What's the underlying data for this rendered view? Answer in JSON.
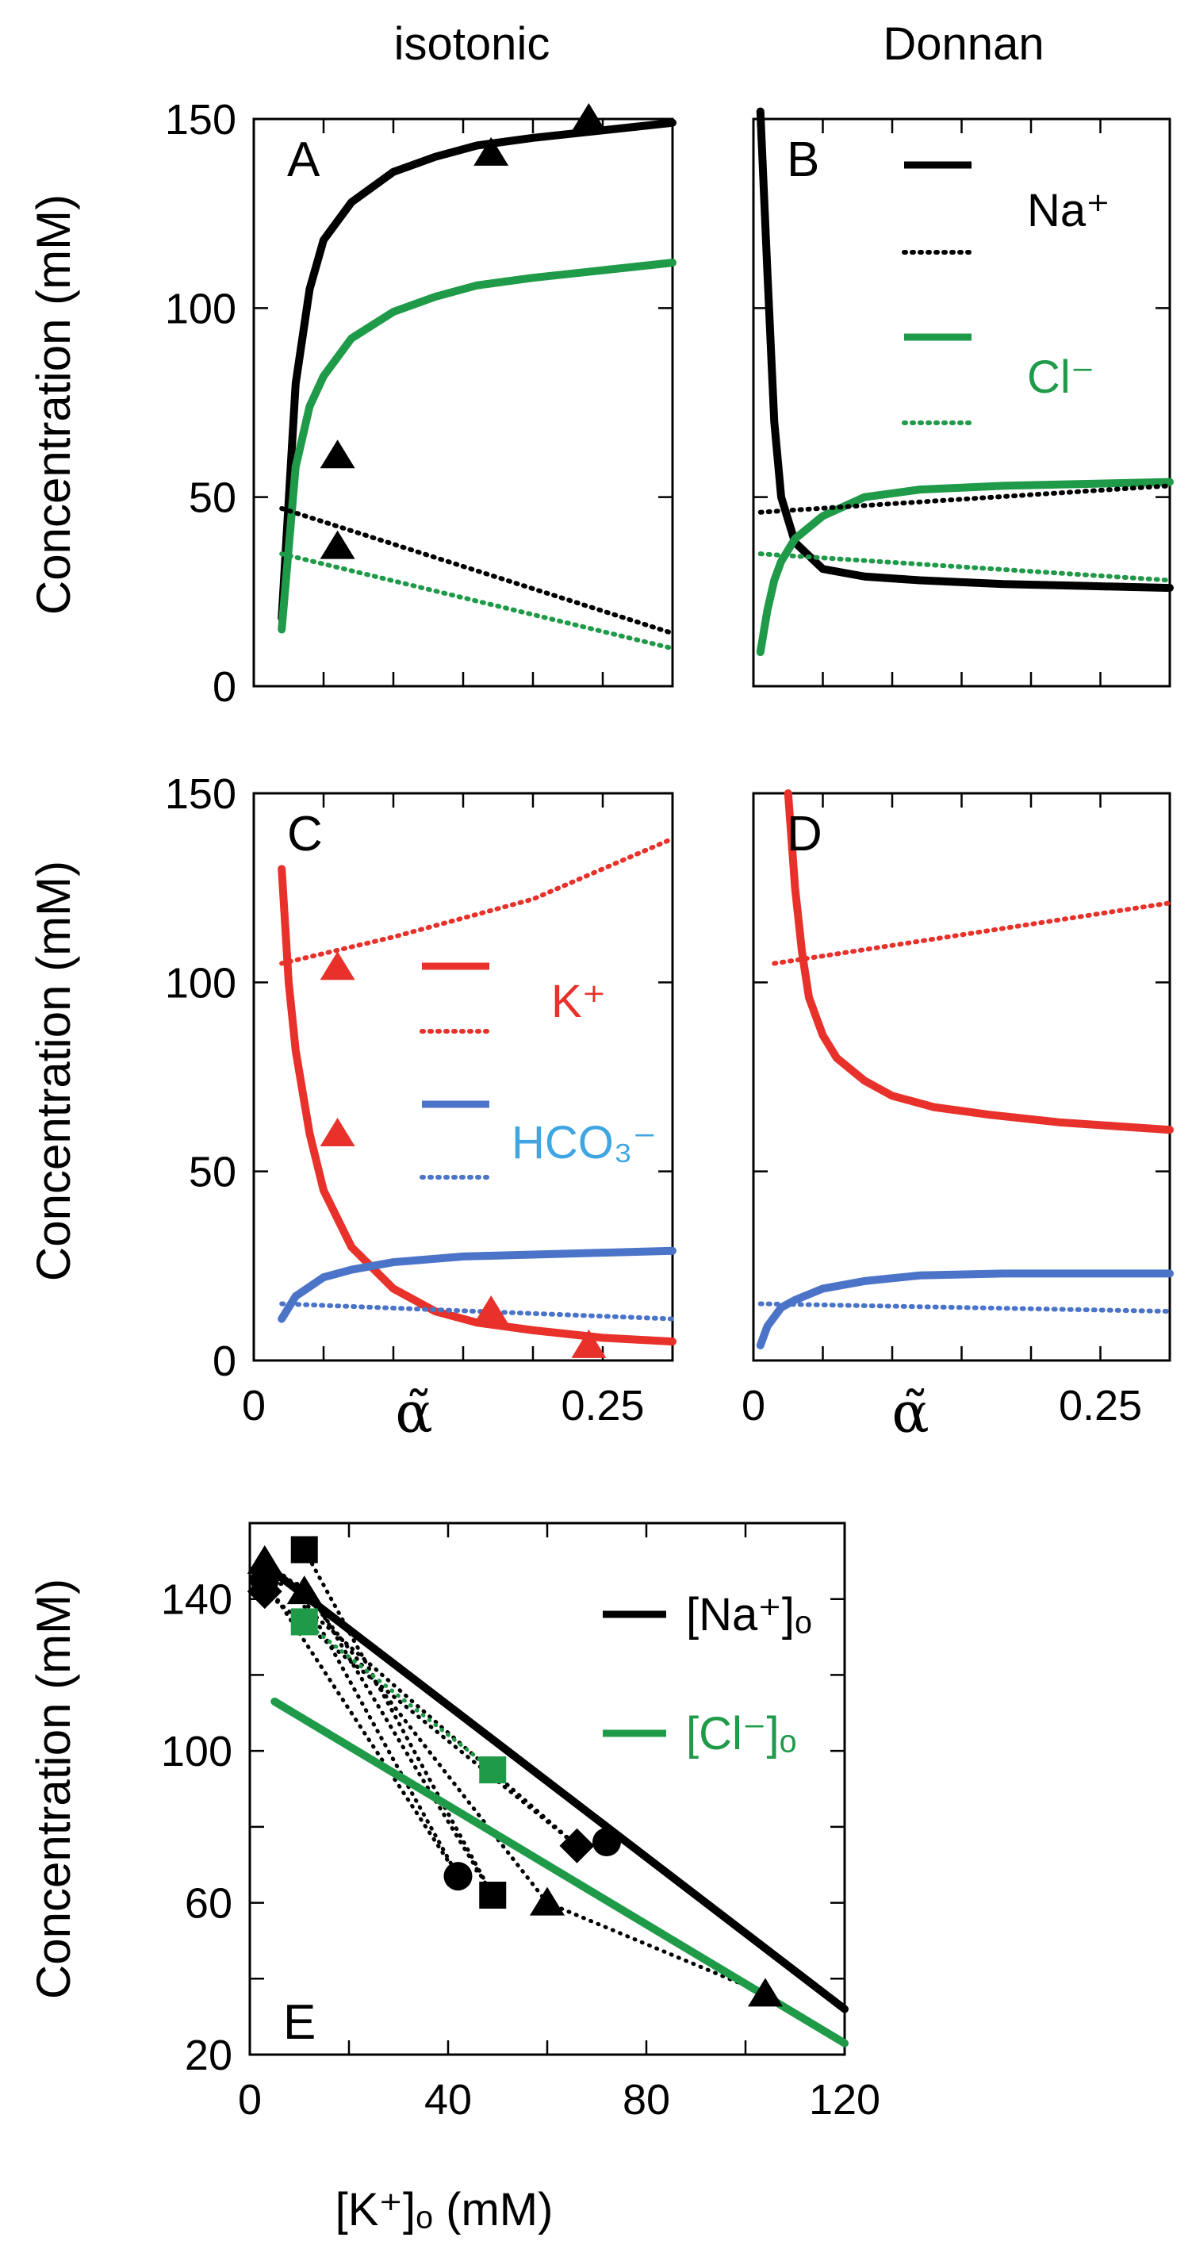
{
  "figure": {
    "column_titles": [
      "isotonic",
      "Donnan"
    ],
    "ylabel": "Concentration  (mM)",
    "alpha_label": "α̃"
  },
  "colors": {
    "na": "#000000",
    "cl": "#1f9a48",
    "k": "#e8312a",
    "hco3": "#4b74c8",
    "hco3_text": "#3fa5e3",
    "marker_red": "#e8312a",
    "marker_green": "#1f9a48"
  },
  "chart_data": [
    {
      "id": "A",
      "panel_label": "A",
      "type": "line",
      "xlim": [
        0,
        0.3
      ],
      "ylim": [
        0,
        150
      ],
      "yticks": [
        0,
        50,
        100,
        150
      ],
      "ytick_labels": [
        "0",
        "50",
        "100",
        "150"
      ],
      "xticks": [
        0,
        0.05,
        0.1,
        0.15,
        0.2,
        0.25,
        0.3
      ],
      "series": [
        {
          "name": "Na+ extracellular",
          "color": "na",
          "style": "solid",
          "x": [
            0.02,
            0.03,
            0.04,
            0.05,
            0.07,
            0.1,
            0.13,
            0.16,
            0.2,
            0.25,
            0.3
          ],
          "y": [
            18,
            80,
            105,
            118,
            128,
            136,
            140,
            143,
            145,
            147,
            149
          ]
        },
        {
          "name": "Cl- extracellular",
          "color": "cl",
          "style": "solid",
          "x": [
            0.02,
            0.03,
            0.04,
            0.05,
            0.07,
            0.1,
            0.13,
            0.16,
            0.2,
            0.25,
            0.3
          ],
          "y": [
            15,
            58,
            74,
            82,
            92,
            99,
            103,
            106,
            108,
            110,
            112
          ]
        },
        {
          "name": "Na+ intracellular",
          "color": "na",
          "style": "dotted",
          "x": [
            0.02,
            0.3
          ],
          "y": [
            47,
            14
          ]
        },
        {
          "name": "Cl- intracellular",
          "color": "cl",
          "style": "dotted",
          "x": [
            0.02,
            0.3
          ],
          "y": [
            35,
            10
          ]
        }
      ],
      "markers": [
        {
          "shape": "triangle",
          "color": "na",
          "x": 0.06,
          "y": 61
        },
        {
          "shape": "triangle",
          "color": "na",
          "x": 0.06,
          "y": 37
        },
        {
          "shape": "triangle",
          "color": "na",
          "x": 0.17,
          "y": 141
        },
        {
          "shape": "triangle",
          "color": "na",
          "x": 0.24,
          "y": 150
        }
      ]
    },
    {
      "id": "B",
      "panel_label": "B",
      "type": "line",
      "xlim": [
        0,
        0.3
      ],
      "ylim": [
        0,
        150
      ],
      "yticks": [
        0,
        50,
        100,
        150
      ],
      "ytick_labels": [
        "",
        "",
        "",
        ""
      ],
      "xticks": [
        0,
        0.05,
        0.1,
        0.15,
        0.2,
        0.25,
        0.3
      ],
      "series": [
        {
          "name": "Na+ extracellular",
          "color": "na",
          "style": "solid",
          "x": [
            0.005,
            0.01,
            0.015,
            0.02,
            0.03,
            0.05,
            0.08,
            0.12,
            0.18,
            0.24,
            0.3
          ],
          "y": [
            152,
            110,
            70,
            50,
            38,
            31,
            29,
            28,
            27,
            26.5,
            26
          ]
        },
        {
          "name": "Cl- extracellular",
          "color": "cl",
          "style": "solid",
          "x": [
            0.005,
            0.01,
            0.015,
            0.02,
            0.03,
            0.05,
            0.08,
            0.12,
            0.18,
            0.24,
            0.3
          ],
          "y": [
            9,
            20,
            28,
            33,
            39,
            45,
            50,
            52,
            53,
            53.5,
            54
          ]
        },
        {
          "name": "Na+ intracellular",
          "color": "na",
          "style": "dotted",
          "x": [
            0.005,
            0.3
          ],
          "y": [
            46,
            53
          ]
        },
        {
          "name": "Cl- intracellular",
          "color": "cl",
          "style": "dotted",
          "x": [
            0.005,
            0.3
          ],
          "y": [
            35,
            28
          ]
        }
      ],
      "legend": {
        "na_label": "Na⁺",
        "cl_label": "Cl⁻"
      }
    },
    {
      "id": "C",
      "panel_label": "C",
      "type": "line",
      "xlim": [
        0,
        0.3
      ],
      "ylim": [
        0,
        150
      ],
      "yticks": [
        0,
        50,
        100,
        150
      ],
      "ytick_labels": [
        "0",
        "50",
        "100",
        "150"
      ],
      "xticks": [
        0,
        0.05,
        0.1,
        0.15,
        0.2,
        0.25,
        0.3
      ],
      "xtick_labels": [
        {
          "x": 0,
          "text": "0"
        },
        {
          "x": 0.25,
          "text": "0.25"
        }
      ],
      "series": [
        {
          "name": "K+ extracellular",
          "color": "k",
          "style": "solid",
          "x": [
            0.02,
            0.025,
            0.03,
            0.04,
            0.05,
            0.07,
            0.1,
            0.13,
            0.16,
            0.2,
            0.25,
            0.3
          ],
          "y": [
            130,
            100,
            82,
            60,
            45,
            30,
            19,
            13,
            10,
            8,
            6,
            5
          ]
        },
        {
          "name": "K+ intracellular",
          "color": "k",
          "style": "dotted",
          "x": [
            0.02,
            0.1,
            0.2,
            0.3
          ],
          "y": [
            105,
            112,
            122,
            138
          ]
        },
        {
          "name": "HCO3- extracellular",
          "color": "hco3",
          "style": "solid",
          "x": [
            0.02,
            0.03,
            0.05,
            0.07,
            0.1,
            0.15,
            0.2,
            0.25,
            0.3
          ],
          "y": [
            11,
            17,
            22,
            24,
            26,
            27.5,
            28,
            28.5,
            29
          ]
        },
        {
          "name": "HCO3- intracellular",
          "color": "hco3",
          "style": "dotted",
          "x": [
            0.02,
            0.3
          ],
          "y": [
            15,
            11
          ]
        }
      ],
      "markers": [
        {
          "shape": "triangle",
          "color": "marker_red",
          "x": 0.06,
          "y": 104
        },
        {
          "shape": "triangle",
          "color": "marker_red",
          "x": 0.06,
          "y": 60
        },
        {
          "shape": "triangle",
          "color": "marker_red",
          "x": 0.17,
          "y": 13
        },
        {
          "shape": "triangle",
          "color": "marker_red",
          "x": 0.24,
          "y": 4
        }
      ],
      "legend": {
        "k_label": "K⁺",
        "hco3_label": "HCO₃⁻"
      }
    },
    {
      "id": "D",
      "panel_label": "D",
      "type": "line",
      "xlim": [
        0,
        0.3
      ],
      "ylim": [
        0,
        150
      ],
      "yticks": [
        0,
        50,
        100,
        150
      ],
      "ytick_labels": [
        "",
        "",
        "",
        ""
      ],
      "xticks": [
        0,
        0.05,
        0.1,
        0.15,
        0.2,
        0.25,
        0.3
      ],
      "xtick_labels": [
        {
          "x": 0,
          "text": "0"
        },
        {
          "x": 0.25,
          "text": "0.25"
        }
      ],
      "series": [
        {
          "name": "K+ extracellular",
          "color": "k",
          "style": "solid",
          "x": [
            0.025,
            0.03,
            0.035,
            0.04,
            0.05,
            0.06,
            0.08,
            0.1,
            0.13,
            0.17,
            0.22,
            0.26,
            0.3
          ],
          "y": [
            150,
            125,
            108,
            96,
            86,
            80,
            74,
            70,
            67,
            65,
            63,
            62,
            61
          ]
        },
        {
          "name": "K+ intracellular",
          "color": "k",
          "style": "dotted",
          "x": [
            0.015,
            0.3
          ],
          "y": [
            105,
            121
          ]
        },
        {
          "name": "HCO3- extracellular",
          "color": "hco3",
          "style": "solid",
          "x": [
            0.005,
            0.01,
            0.02,
            0.03,
            0.05,
            0.08,
            0.12,
            0.18,
            0.24,
            0.3
          ],
          "y": [
            4,
            9,
            14,
            16,
            19,
            21,
            22.5,
            23,
            23,
            23
          ]
        },
        {
          "name": "HCO3- intracellular",
          "color": "hco3",
          "style": "dotted",
          "x": [
            0.005,
            0.3
          ],
          "y": [
            15,
            13
          ]
        }
      ]
    },
    {
      "id": "E",
      "panel_label": "E",
      "type": "scatter",
      "xlabel": "[K⁺]ₒ (mM)",
      "xlim": [
        0,
        120
      ],
      "ylim": [
        20,
        160
      ],
      "yticks": [
        20,
        40,
        60,
        80,
        100,
        120,
        140
      ],
      "ytick_labels": [
        "20",
        "",
        "60",
        "",
        "100",
        "",
        "140"
      ],
      "xticks": [
        0,
        20,
        40,
        60,
        80,
        100,
        120
      ],
      "xtick_labels": [
        "0",
        "",
        "40",
        "",
        "80",
        "",
        "120"
      ],
      "series": [
        {
          "name": "[Na+]o",
          "color": "na",
          "style": "solid",
          "x": [
            5,
            120
          ],
          "y": [
            147,
            32
          ]
        },
        {
          "name": "[Cl-]o",
          "color": "cl",
          "style": "solid",
          "x": [
            5,
            120
          ],
          "y": [
            113,
            23
          ]
        }
      ],
      "dotted_paths": [
        {
          "color": "na",
          "points": [
            [
              3,
              150
            ],
            [
              11,
              142
            ],
            [
              60,
              60
            ],
            [
              104,
              36
            ]
          ]
        },
        {
          "color": "na",
          "points": [
            [
              3,
              145
            ],
            [
              42,
              67
            ],
            [
              47,
              69
            ]
          ]
        },
        {
          "color": "na",
          "points": [
            [
              3,
              144
            ],
            [
              11,
              144
            ],
            [
              49,
              62
            ]
          ]
        },
        {
          "color": "na",
          "points": [
            [
              3,
              142
            ],
            [
              66,
              75
            ],
            [
              72,
              76
            ]
          ]
        },
        {
          "color": "na",
          "points": [
            [
              11,
              153
            ],
            [
              49,
              62
            ]
          ]
        },
        {
          "color": "na",
          "points": [
            [
              11,
              140
            ],
            [
              42,
              67
            ]
          ]
        },
        {
          "color": "na",
          "points": [
            [
              11,
              138
            ],
            [
              66,
              75
            ]
          ]
        },
        {
          "color": "cl",
          "points": [
            [
              11,
              134
            ],
            [
              49,
              95
            ]
          ]
        }
      ],
      "markers": [
        {
          "shape": "triangle",
          "color": "na",
          "x": 3,
          "y": 150
        },
        {
          "shape": "triangle",
          "color": "na",
          "x": 11,
          "y": 142
        },
        {
          "shape": "diamond",
          "color": "na",
          "x": 3,
          "y": 142
        },
        {
          "shape": "circle",
          "color": "na",
          "x": 3,
          "y": 145
        },
        {
          "shape": "square",
          "color": "na",
          "x": 11,
          "y": 153
        },
        {
          "shape": "square",
          "color": "marker_green",
          "x": 11,
          "y": 134
        },
        {
          "shape": "square",
          "color": "marker_green",
          "x": 49,
          "y": 95
        },
        {
          "shape": "circle",
          "color": "na",
          "x": 42,
          "y": 67
        },
        {
          "shape": "square",
          "color": "na",
          "x": 49,
          "y": 62
        },
        {
          "shape": "triangle",
          "color": "na",
          "x": 60,
          "y": 60
        },
        {
          "shape": "diamond",
          "color": "na",
          "x": 66,
          "y": 75
        },
        {
          "shape": "circle",
          "color": "na",
          "x": 72,
          "y": 76
        },
        {
          "shape": "triangle",
          "color": "na",
          "x": 104,
          "y": 36
        }
      ],
      "legend": {
        "na_label": "[Na⁺]ₒ",
        "cl_label": "[Cl⁻]ₒ"
      }
    }
  ]
}
